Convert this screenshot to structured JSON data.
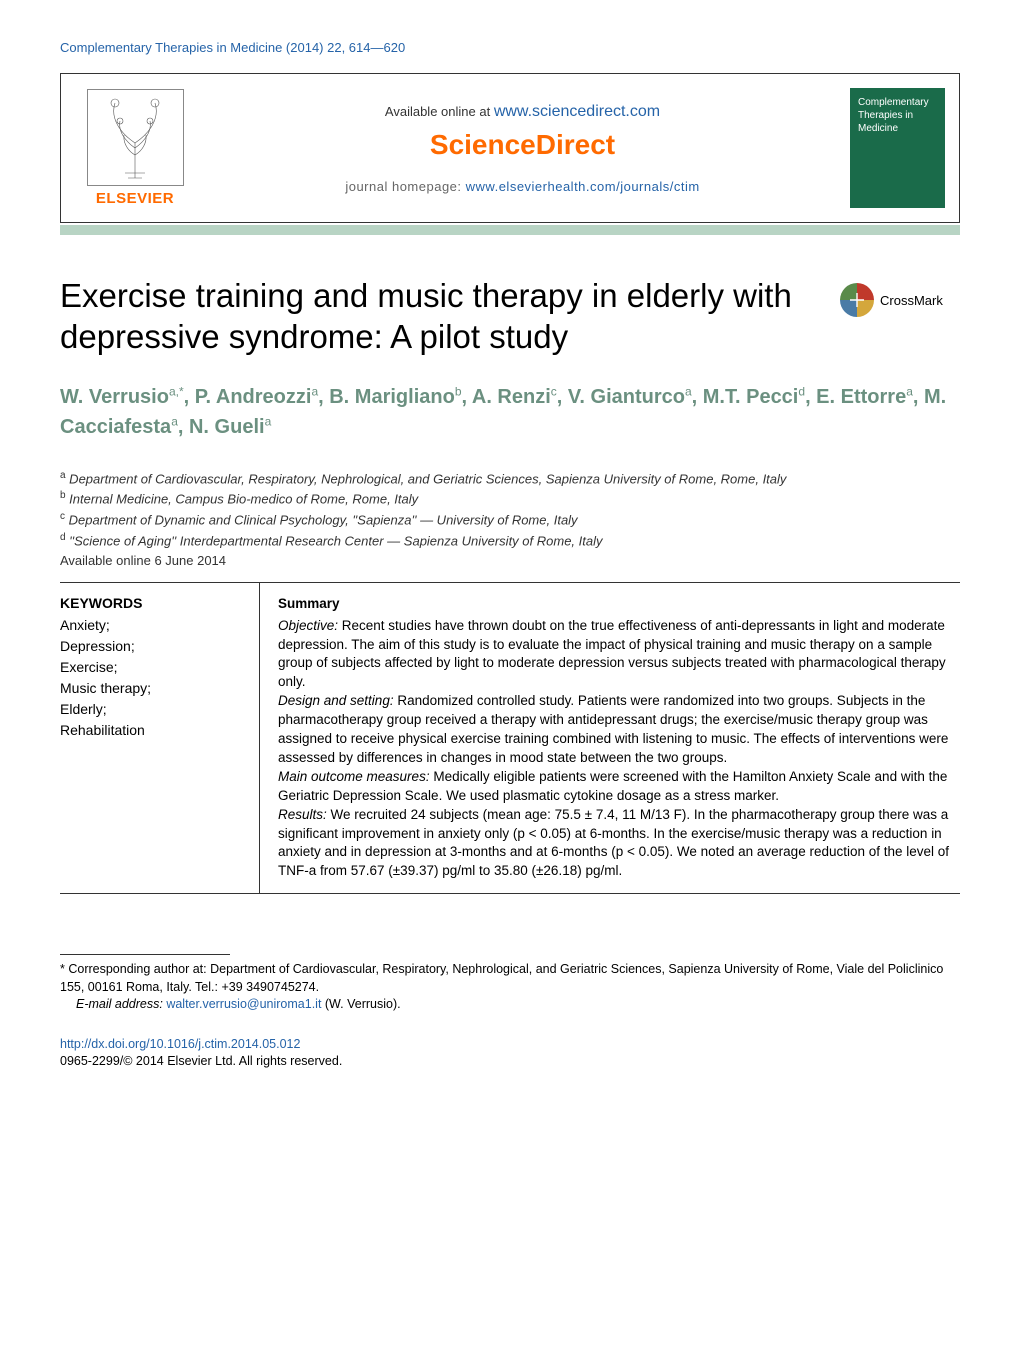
{
  "journal_ref": "Complementary Therapies in Medicine (2014) 22, 614—620",
  "header": {
    "available_prefix": "Available online at ",
    "available_link": "www.sciencedirect.com",
    "sciencedirect": "ScienceDirect",
    "homepage_prefix": "journal homepage: ",
    "homepage_link": "www.elsevierhealth.com/journals/ctim",
    "elsevier": "ELSEVIER",
    "cover_line1": "Complementary",
    "cover_line2": "Therapies in",
    "cover_line3": "Medicine"
  },
  "title": "Exercise training and music therapy in elderly with depressive syndrome: A pilot study",
  "crossmark": "CrossMark",
  "authors_html": "W. Verrusio<sup>a,*</sup>, P. Andreozzi<sup>a</sup>, B. Marigliano<sup>b</sup>, A. Renzi<sup>c</sup>, V. Gianturco<sup>a</sup>, M.T. Pecci<sup>d</sup>, E. Ettorre<sup>a</sup>, M. Cacciafesta<sup>a</sup>, N. Gueli<sup>a</sup>",
  "affiliations": [
    {
      "sup": "a",
      "text": " Department of Cardiovascular, Respiratory, Nephrological, and Geriatric Sciences, Sapienza University of Rome, Rome, Italy"
    },
    {
      "sup": "b",
      "text": " Internal Medicine, Campus Bio-medico of Rome, Rome, Italy"
    },
    {
      "sup": "c",
      "text": " Department of Dynamic and Clinical Psychology, ''Sapienza'' — University of Rome, Italy"
    },
    {
      "sup": "d",
      "text": " ''Science of Aging'' Interdepartmental Research Center — Sapienza University of Rome, Italy"
    }
  ],
  "available_date": "Available online 6 June 2014",
  "keywords": {
    "heading": "KEYWORDS",
    "items": [
      "Anxiety;",
      "Depression;",
      "Exercise;",
      "Music therapy;",
      "Elderly;",
      "Rehabilitation"
    ]
  },
  "summary": {
    "heading": "Summary",
    "objective_label": "Objective:",
    "objective": " Recent studies have thrown doubt on the true effectiveness of anti-depressants in light and moderate depression. The aim of this study is to evaluate the impact of physical training and music therapy on a sample group of subjects affected by light to moderate depression versus subjects treated with pharmacological therapy only.",
    "design_label": "Design and setting:",
    "design": " Randomized controlled study. Patients were randomized into two groups. Subjects in the pharmacotherapy group received a therapy with antidepressant drugs; the exercise/music therapy group was assigned to receive physical exercise training combined with listening to music. The effects of interventions were assessed by differences in changes in mood state between the two groups.",
    "outcome_label": "Main outcome measures:",
    "outcome": " Medically eligible patients were screened with the Hamilton Anxiety Scale and with the Geriatric Depression Scale. We used plasmatic cytokine dosage as a stress marker.",
    "results_label": "Results:",
    "results": " We recruited 24 subjects (mean age: 75.5 ± 7.4, 11 M/13 F). In the pharmacotherapy group there was a significant improvement in anxiety only (p < 0.05) at 6-months. In the exercise/music therapy was a reduction in anxiety and in depression at 3-months and at 6-months (p < 0.05). We noted an average reduction of the level of TNF-a from 57.67 (±39.37) pg/ml to 35.80 (±26.18) pg/ml."
  },
  "footnote": {
    "corresponding": "* Corresponding author at: Department of Cardiovascular, Respiratory, Nephrological, and Geriatric Sciences, Sapienza University of Rome, Viale del Policlinico 155, 00161 Roma, Italy. Tel.: +39 3490745274.",
    "email_label": "E-mail address: ",
    "email": "walter.verrusio@uniroma1.it",
    "email_suffix": " (W. Verrusio)."
  },
  "doi": {
    "link": "http://dx.doi.org/10.1016/j.ctim.2014.05.012",
    "copyright": "0965-2299/© 2014 Elsevier Ltd. All rights reserved."
  },
  "colors": {
    "link": "#2563a8",
    "accent_orange": "#ff6a00",
    "author_green": "#6b9080",
    "rule_green": "#b8d4c4",
    "cover_green": "#1a6b4a"
  }
}
